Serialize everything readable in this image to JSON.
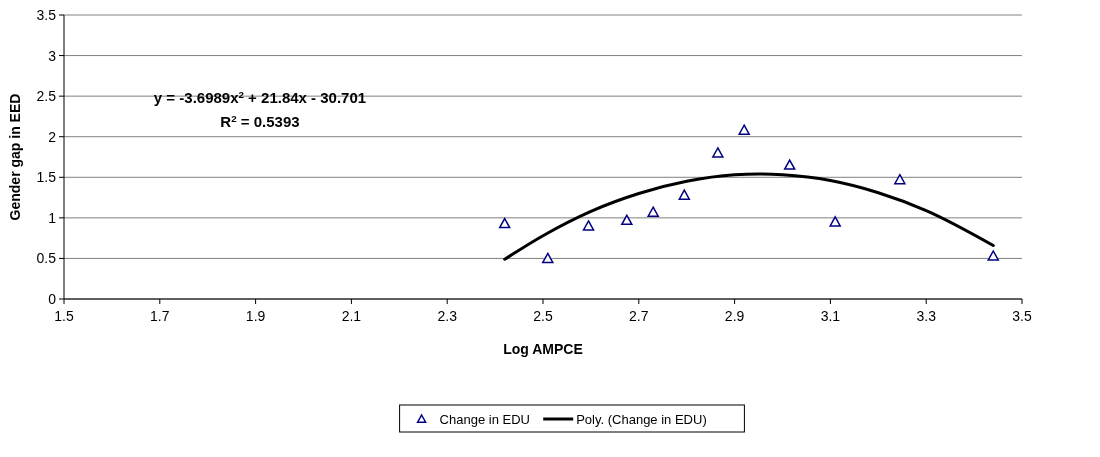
{
  "chart_data": {
    "type": "scatter",
    "xlabel": "Log AMPCE",
    "ylabel": "Gender gap in EED",
    "xlim": [
      1.5,
      3.5
    ],
    "xticks": [
      1.5,
      1.7,
      1.9,
      2.1,
      2.3,
      2.5,
      2.7,
      2.9,
      3.1,
      3.3,
      3.5
    ],
    "ylim": [
      0,
      3.5
    ],
    "yticks": [
      0,
      0.5,
      1,
      1.5,
      2,
      2.5,
      3,
      3.5
    ],
    "grid": "y",
    "legend": "bottom",
    "annotations": [
      "y = -3.6989x$^{2}$ + 21.84x - 30.701",
      "R$^{2}$ = 0.5393"
    ],
    "series": [
      {
        "name": "Change in EDU",
        "marker": "triangle",
        "color": "#000080",
        "x": [
          2.42,
          2.51,
          2.595,
          2.675,
          2.73,
          2.795,
          2.865,
          2.92,
          3.015,
          3.11,
          3.245,
          3.44
        ],
        "values": [
          0.93,
          0.5,
          0.9,
          0.97,
          1.07,
          1.28,
          1.8,
          2.08,
          1.65,
          0.95,
          1.47,
          0.53
        ]
      },
      {
        "name": "Poly. (Change in EDU)",
        "type": "line",
        "line_style": "solid",
        "color": "#000000",
        "x": [
          2.42,
          2.5,
          2.6,
          2.7,
          2.8,
          2.9,
          2.95,
          3.0,
          3.1,
          3.2,
          3.3,
          3.44
        ],
        "values": [
          0.49,
          0.78,
          1.08,
          1.3,
          1.45,
          1.53,
          1.54,
          1.53,
          1.46,
          1.31,
          1.09,
          0.66
        ]
      }
    ]
  }
}
